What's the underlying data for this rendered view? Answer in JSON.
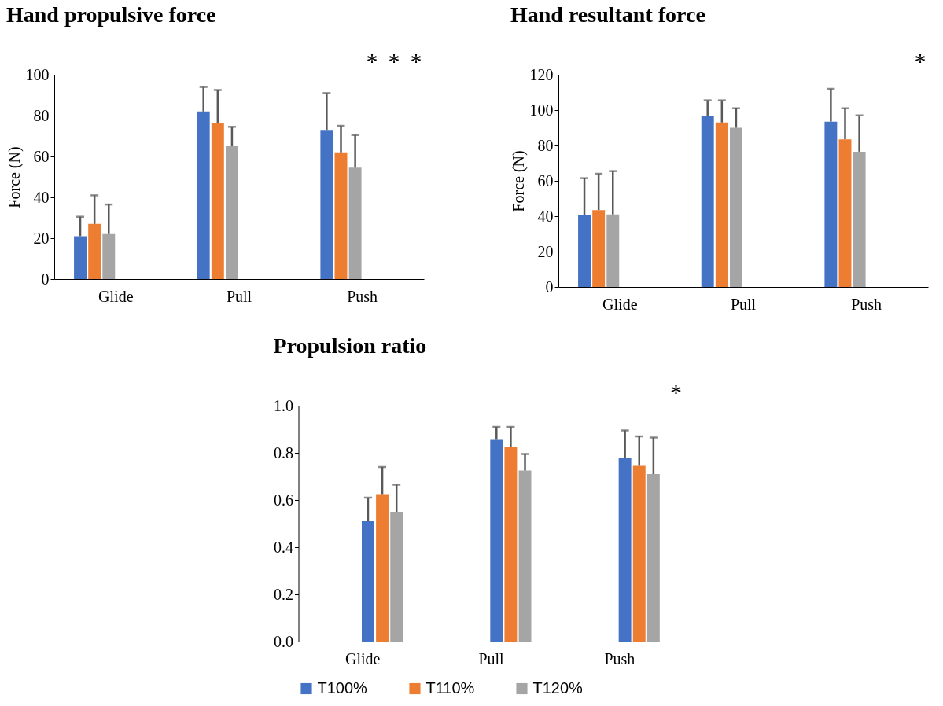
{
  "chart_data": [
    {
      "type": "bar",
      "title": "Hand propulsive force",
      "ylabel": "Force (N)",
      "categories": [
        "Glide",
        "Pull",
        "Push"
      ],
      "ylim": [
        0,
        100
      ],
      "yticks": [
        0,
        20,
        40,
        60,
        80,
        100
      ],
      "grid": false,
      "series": [
        {
          "color": "#4472c4",
          "values": [
            21,
            82,
            73
          ],
          "errors": [
            [
              21,
              30.5
            ],
            [
              82,
              94
            ],
            [
              73,
              91
            ]
          ]
        },
        {
          "color": "#ed7d31",
          "values": [
            27,
            76.5,
            62
          ],
          "errors": [
            [
              27,
              41
            ],
            [
              76.5,
              92.5
            ],
            [
              62,
              75
            ]
          ]
        },
        {
          "color": "#a5a5a5",
          "values": [
            22,
            65,
            54.5
          ],
          "errors": [
            [
              22,
              36.5
            ],
            [
              65,
              74.5
            ],
            [
              54.5,
              70.5
            ]
          ]
        }
      ],
      "annotations": [
        "*",
        "*",
        "*"
      ]
    },
    {
      "type": "bar",
      "title": "Hand resultant force",
      "ylabel": "Force (N)",
      "categories": [
        "Glide",
        "Pull",
        "Push"
      ],
      "ylim": [
        0,
        120
      ],
      "yticks": [
        0,
        20,
        40,
        60,
        80,
        100,
        120
      ],
      "grid": false,
      "series": [
        {
          "color": "#4472c4",
          "values": [
            40.5,
            96.5,
            93.5
          ],
          "errors": [
            [
              40.5,
              61.5
            ],
            [
              96.5,
              105.5
            ],
            [
              93.5,
              112
            ]
          ]
        },
        {
          "color": "#ed7d31",
          "values": [
            43.5,
            93,
            83.5
          ],
          "errors": [
            [
              43.5,
              64
            ],
            [
              93,
              105.5
            ],
            [
              83.5,
              101
            ]
          ]
        },
        {
          "color": "#a5a5a5",
          "values": [
            41,
            90,
            76.5
          ],
          "errors": [
            [
              41,
              65.5
            ],
            [
              90,
              101
            ],
            [
              76.5,
              97
            ]
          ]
        }
      ],
      "annotations": [
        "*"
      ]
    },
    {
      "type": "bar",
      "title": "Propulsion ratio",
      "categories": [
        "Glide",
        "Pull",
        "Push"
      ],
      "ylim": [
        0,
        1
      ],
      "yticks": [
        {
          "value": 0,
          "label": "0.0"
        },
        0.2,
        0.4,
        0.6,
        0.8,
        {
          "value": 1,
          "label": "1.0"
        }
      ],
      "grid": false,
      "legend": "bottom",
      "series": [
        {
          "name": "T100%",
          "color": "#4472c4",
          "values": [
            0.51,
            0.855,
            0.78
          ],
          "errors": [
            [
              0.51,
              0.61
            ],
            [
              0.855,
              0.91
            ],
            [
              0.78,
              0.895
            ]
          ]
        },
        {
          "name": "T110%",
          "color": "#ed7d31",
          "values": [
            0.625,
            0.825,
            0.745
          ],
          "errors": [
            [
              0.625,
              0.74
            ],
            [
              0.825,
              0.91
            ],
            [
              0.745,
              0.87
            ]
          ]
        },
        {
          "name": "T120%",
          "color": "#a5a5a5",
          "values": [
            0.55,
            0.725,
            0.71
          ],
          "errors": [
            [
              0.55,
              0.665
            ],
            [
              0.725,
              0.795
            ],
            [
              0.71,
              0.865
            ]
          ]
        }
      ],
      "annotations": [
        "*"
      ]
    }
  ]
}
